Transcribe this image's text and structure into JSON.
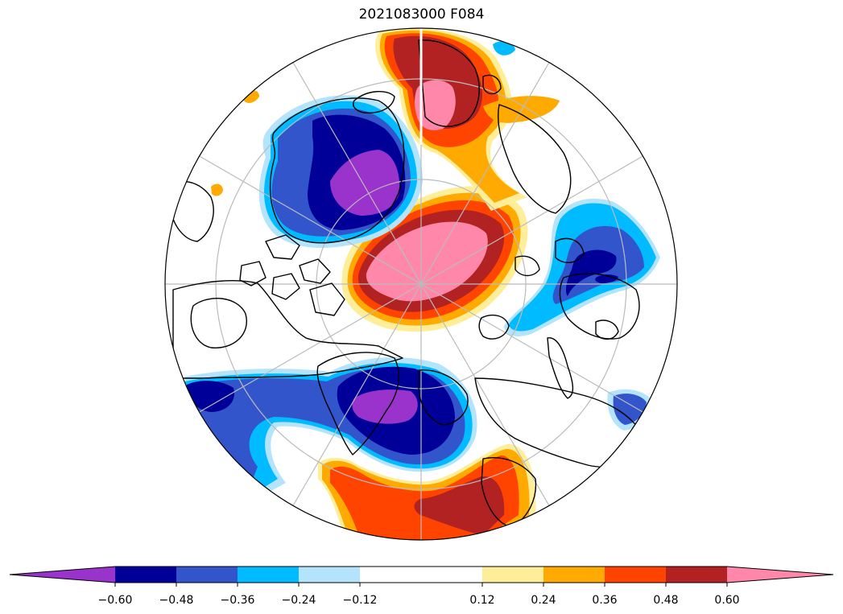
{
  "title": "2021083000 F084",
  "map": {
    "projection": "north-polar-stereographic",
    "graticule": "on"
  },
  "colorbar": {
    "orientation": "horizontal",
    "extend": "both",
    "levels": [
      -0.72,
      -0.6,
      -0.48,
      -0.36,
      -0.24,
      -0.12,
      0.12,
      0.24,
      0.36,
      0.48,
      0.6,
      0.72
    ],
    "colors": [
      "#9933cc",
      "#000099",
      "#3355cc",
      "#00bbff",
      "#b3e4fb",
      "#ffffff",
      "#ffee99",
      "#ffaa00",
      "#ff4400",
      "#b22222",
      "#ff88aa"
    ],
    "ticks": [
      "−0.60",
      "−0.48",
      "−0.36",
      "−0.24",
      "−0.12",
      "0.12",
      "0.24",
      "0.36",
      "0.48",
      "0.60"
    ]
  },
  "palette": {
    "purple": "#9933cc",
    "navy": "#000099",
    "royal": "#3355cc",
    "sky": "#00bbff",
    "pale_blue": "#b3e4fb",
    "pale_yellow": "#ffee99",
    "orange": "#ffaa00",
    "red_orange": "#ff4400",
    "dark_red": "#b22222",
    "pink": "#ff88aa"
  }
}
